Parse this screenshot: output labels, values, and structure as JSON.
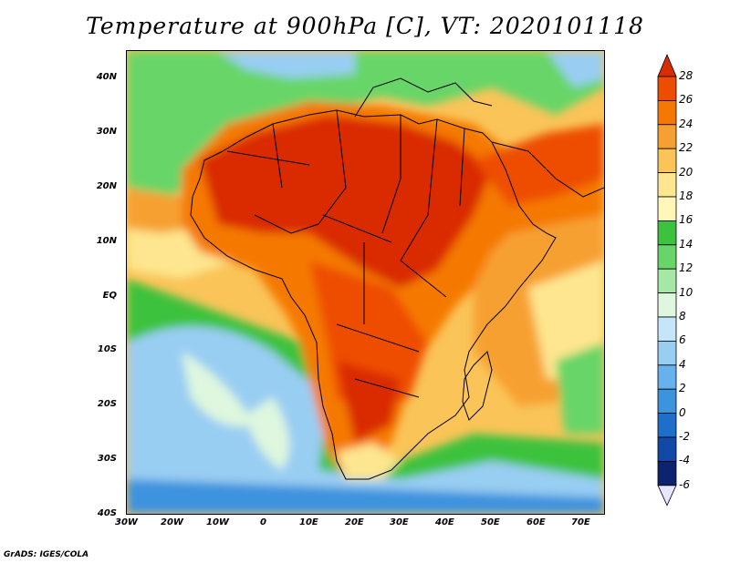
{
  "title": "Temperature at 900hPa [C], VT: 2020101118",
  "credit": "GrADS: IGES/COLA",
  "lat_labels": [
    "40N",
    "30N",
    "20N",
    "10N",
    "EQ",
    "10S",
    "20S",
    "30S",
    "40S"
  ],
  "lon_labels": [
    "30W",
    "20W",
    "10W",
    "0",
    "10E",
    "20E",
    "30E",
    "40E",
    "50E",
    "60E",
    "70E"
  ],
  "colorbar": {
    "labels": [
      "28",
      "26",
      "24",
      "22",
      "20",
      "18",
      "16",
      "14",
      "12",
      "10",
      "8",
      "6",
      "4",
      "2",
      "0",
      "-2",
      "-4",
      "-6"
    ],
    "colors": [
      "#d92c00",
      "#ee4d00",
      "#f57900",
      "#f7a032",
      "#fac458",
      "#fde68f",
      "#fef7b8",
      "#3dc23d",
      "#67d567",
      "#a5e8a5",
      "#def7de",
      "#c4e6f8",
      "#99cef3",
      "#67b1ec",
      "#3c93de",
      "#1e6fcc",
      "#1248a8",
      "#0c2470",
      "#e6e6ff"
    ]
  }
}
